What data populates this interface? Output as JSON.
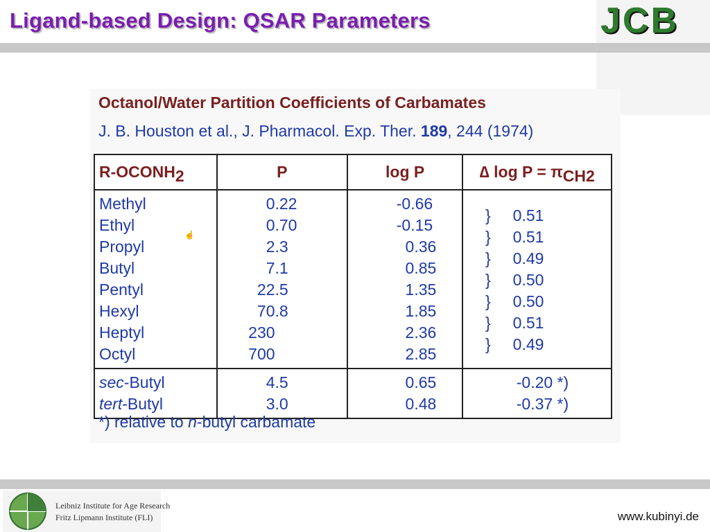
{
  "header": {
    "title": "Ligand-based Design: QSAR Parameters",
    "logo_text": "JCB"
  },
  "card": {
    "title": "Octanol/Water Partition Coefficients of Carbamates",
    "ref_prefix": "J. B. Houston et al., J. Pharmacol. Exp. Ther. ",
    "ref_volume": "189",
    "ref_suffix": ", 244 (1974)"
  },
  "table": {
    "headers": {
      "col1": "R-OCONH",
      "col1_sub": "2",
      "col2": "P",
      "col3": "log P",
      "col4": "∆ log P = π",
      "col4_sub": "CH2"
    },
    "names": "Methyl\nEthyl\nPropyl\nButyl\nPentyl\nHexyl\nHeptyl\nOctyl",
    "p_values": "          0.22\n          0.70\n          2.3\n          7.1\n        22.5\n        70.8\n      230\n      700",
    "logp_values": "          -0.66\n          -0.15\n            0.36\n            0.85\n            1.35\n            1.85\n            2.36\n            2.85",
    "delta_values": "\n    }     0.51\n    }     0.51\n    }     0.49\n    }     0.50\n    }     0.50\n    }     0.51\n    }     0.49",
    "branched_names_prefix": [
      "sec",
      "tert"
    ],
    "branched_names_suffix": [
      "-Butyl",
      "-Butyl"
    ],
    "branched_p": "          4.5\n          3.0",
    "branched_logp": "            0.65\n            0.48",
    "branched_delta": "           -0.20 *)\n           -0.37 *)"
  },
  "footnote": {
    "prefix": "*)  relative to ",
    "italic": "n",
    "suffix": "-butyl carbamate"
  },
  "footer": {
    "institute_line1": "Leibniz Institute for Age Research",
    "institute_line2": "Fritz Lipmann Institute (FLI)",
    "website": "www.kubinyi.de"
  },
  "colors": {
    "title": "#7a1db0",
    "heading": "#7b1f1f",
    "text": "#1f3aa5",
    "logo": "#2f7a2d",
    "bar": "#c8c8c8"
  }
}
